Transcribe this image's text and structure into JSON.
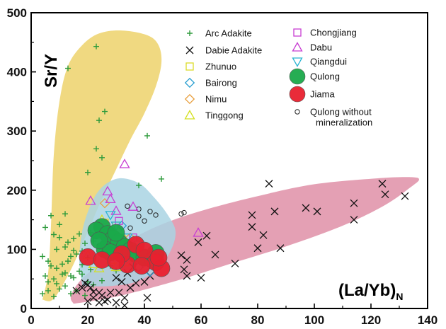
{
  "chart_data": {
    "type": "scatter",
    "title": "",
    "ylabel": "Sr/Y",
    "xlabel_main": "(La/Yb)",
    "xlabel_sub": "N",
    "xlim": [
      0,
      140
    ],
    "ylim": [
      0,
      500
    ],
    "x_ticks": [
      0,
      20,
      40,
      60,
      80,
      100,
      120,
      140
    ],
    "y_ticks": [
      0,
      100,
      200,
      300,
      400,
      500
    ],
    "x_tick_labels": [
      "0",
      "20",
      "40",
      "60",
      "80",
      "100",
      "120",
      "140"
    ],
    "y_tick_labels": [
      "0",
      "100",
      "200",
      "300",
      "400",
      "500"
    ],
    "grid": false,
    "legend_position": "top-right",
    "fields": [
      {
        "name": "arc-adakite-field",
        "color": "#efd77a",
        "outline": [
          [
            4,
            15
          ],
          [
            6,
            60
          ],
          [
            7,
            140
          ],
          [
            8,
            260
          ],
          [
            10,
            350
          ],
          [
            13,
            410
          ],
          [
            18,
            445
          ],
          [
            24,
            465
          ],
          [
            32,
            470
          ],
          [
            41,
            462
          ],
          [
            45,
            445
          ],
          [
            46,
            415
          ],
          [
            44,
            375
          ],
          [
            40,
            330
          ],
          [
            35,
            285
          ],
          [
            30,
            235
          ],
          [
            25,
            185
          ],
          [
            20,
            130
          ],
          [
            15,
            75
          ],
          [
            10,
            30
          ],
          [
            7,
            13
          ],
          [
            4,
            15
          ]
        ]
      },
      {
        "name": "dabie-adakite-field",
        "color": "#e39bb0",
        "outline": [
          [
            15,
            8
          ],
          [
            30,
            20
          ],
          [
            50,
            45
          ],
          [
            70,
            75
          ],
          [
            90,
            105
          ],
          [
            110,
            140
          ],
          [
            125,
            175
          ],
          [
            134,
            205
          ],
          [
            137,
            218
          ],
          [
            134,
            222
          ],
          [
            122,
            220
          ],
          [
            100,
            210
          ],
          [
            80,
            190
          ],
          [
            60,
            165
          ],
          [
            45,
            140
          ],
          [
            33,
            110
          ],
          [
            25,
            80
          ],
          [
            17,
            45
          ],
          [
            14,
            20
          ],
          [
            15,
            8
          ]
        ]
      },
      {
        "name": "tibet-adakite-field",
        "color": "#a9d3e3",
        "outline": [
          [
            18,
            40
          ],
          [
            17,
            80
          ],
          [
            18,
            130
          ],
          [
            21,
            175
          ],
          [
            25,
            205
          ],
          [
            31,
            220
          ],
          [
            38,
            212
          ],
          [
            43,
            190
          ],
          [
            48,
            160
          ],
          [
            51,
            130
          ],
          [
            49,
            95
          ],
          [
            44,
            65
          ],
          [
            37,
            45
          ],
          [
            28,
            38
          ],
          [
            20,
            38
          ],
          [
            18,
            40
          ]
        ]
      }
    ],
    "series": [
      {
        "name": "Arc Adakite",
        "marker": "plus",
        "color": "#2e9b3c",
        "points": [
          [
            23,
            443
          ],
          [
            13,
            406
          ],
          [
            26,
            333
          ],
          [
            24,
            318
          ],
          [
            41,
            292
          ],
          [
            46,
            219
          ],
          [
            38,
            208
          ],
          [
            5,
            137
          ],
          [
            7,
            157
          ],
          [
            10,
            142
          ],
          [
            12,
            160
          ],
          [
            8,
            125
          ],
          [
            10,
            120
          ],
          [
            13,
            112
          ],
          [
            15,
            118
          ],
          [
            17,
            126
          ],
          [
            19,
            110
          ],
          [
            21,
            128
          ],
          [
            22,
            114
          ],
          [
            4,
            88
          ],
          [
            6,
            80
          ],
          [
            7,
            72
          ],
          [
            9,
            68
          ],
          [
            11,
            75
          ],
          [
            13,
            80
          ],
          [
            14,
            88
          ],
          [
            16,
            92
          ],
          [
            18,
            97
          ],
          [
            20,
            86
          ],
          [
            5,
            55
          ],
          [
            6,
            45
          ],
          [
            8,
            50
          ],
          [
            9,
            42
          ],
          [
            11,
            58
          ],
          [
            12,
            60
          ],
          [
            14,
            55
          ],
          [
            15,
            52
          ],
          [
            17,
            63
          ],
          [
            18,
            58
          ],
          [
            20,
            45
          ],
          [
            22,
            40
          ],
          [
            25,
            47
          ],
          [
            4,
            25
          ],
          [
            6,
            30
          ],
          [
            8,
            20
          ],
          [
            10,
            33
          ],
          [
            12,
            38
          ],
          [
            14,
            25
          ],
          [
            16,
            30
          ],
          [
            19,
            22
          ],
          [
            9,
            100
          ],
          [
            12,
            104
          ],
          [
            15,
            98
          ],
          [
            18,
            74
          ],
          [
            21,
            66
          ],
          [
            25,
            100
          ],
          [
            28,
            72
          ],
          [
            30,
            64
          ],
          [
            23,
            270
          ],
          [
            25,
            255
          ],
          [
            20,
            230
          ]
        ]
      },
      {
        "name": "Dabie Adakite",
        "marker": "x",
        "color": "#111111",
        "points": [
          [
            84,
            211
          ],
          [
            124,
            211
          ],
          [
            125,
            193
          ],
          [
            132,
            190
          ],
          [
            114,
            178
          ],
          [
            97,
            170
          ],
          [
            101,
            164
          ],
          [
            86,
            164
          ],
          [
            78,
            158
          ],
          [
            114,
            150
          ],
          [
            78,
            138
          ],
          [
            82,
            124
          ],
          [
            62,
            123
          ],
          [
            59,
            112
          ],
          [
            80,
            102
          ],
          [
            88,
            102
          ],
          [
            65,
            91
          ],
          [
            53,
            90
          ],
          [
            55,
            82
          ],
          [
            72,
            76
          ],
          [
            54,
            66
          ],
          [
            55,
            55
          ],
          [
            60,
            52
          ],
          [
            34,
            60
          ],
          [
            36,
            70
          ],
          [
            30,
            52
          ],
          [
            37,
            43
          ],
          [
            40,
            45
          ],
          [
            42,
            55
          ],
          [
            32,
            45
          ],
          [
            35,
            35
          ],
          [
            28,
            27
          ],
          [
            33,
            18
          ],
          [
            30,
            10
          ],
          [
            41,
            18
          ],
          [
            24,
            10
          ],
          [
            18,
            35
          ],
          [
            19,
            43
          ],
          [
            20,
            40
          ],
          [
            21,
            35
          ],
          [
            22,
            28
          ],
          [
            24,
            27
          ],
          [
            25,
            22
          ],
          [
            27,
            15
          ],
          [
            20,
            12
          ],
          [
            16,
            30
          ],
          [
            22,
            18
          ],
          [
            26,
            12
          ],
          [
            31,
            27
          ],
          [
            33,
            5
          ]
        ]
      },
      {
        "name": "Zhunuo",
        "marker": "square",
        "color": "#dcdc2a",
        "points": [
          [
            26,
            145
          ],
          [
            30,
            140
          ],
          [
            32,
            118
          ],
          [
            35,
            105
          ],
          [
            38,
            95
          ],
          [
            40,
            85
          ],
          [
            42,
            80
          ],
          [
            36,
            90
          ],
          [
            28,
            125
          ]
        ]
      },
      {
        "name": "Bairong",
        "marker": "diamond",
        "color": "#2a9fd0",
        "points": [
          [
            32,
            140
          ],
          [
            34,
            110
          ],
          [
            36,
            88
          ],
          [
            38,
            70
          ],
          [
            40,
            80
          ],
          [
            30,
            100
          ],
          [
            26,
            112
          ],
          [
            42,
            62
          ],
          [
            28,
            90
          ]
        ]
      },
      {
        "name": "Nimu",
        "marker": "diamond",
        "color": "#e8a040",
        "points": [
          [
            26,
            178
          ],
          [
            38,
            102
          ],
          [
            40,
            95
          ],
          [
            35,
            120
          ],
          [
            30,
            110
          ],
          [
            42,
            90
          ]
        ]
      },
      {
        "name": "Tinggong",
        "marker": "triangle-up",
        "color": "#d4e020",
        "points": [
          [
            25,
            150
          ],
          [
            22,
            75
          ],
          [
            24,
            68
          ],
          [
            28,
            82
          ],
          [
            30,
            70
          ],
          [
            33,
            78
          ],
          [
            26,
            95
          ],
          [
            20,
            90
          ]
        ]
      },
      {
        "name": "Chongjiang",
        "marker": "square",
        "color": "#c83ed2",
        "points": [
          [
            31,
            148
          ],
          [
            36,
            120
          ],
          [
            29,
            110
          ],
          [
            33,
            92
          ],
          [
            38,
            88
          ]
        ]
      },
      {
        "name": "Dabu",
        "marker": "triangle-up",
        "color": "#c83ed2",
        "points": [
          [
            33,
            244
          ],
          [
            21,
            182
          ],
          [
            27,
            198
          ],
          [
            36,
            172
          ],
          [
            28,
            185
          ],
          [
            59,
            128
          ],
          [
            30,
            165
          ]
        ]
      },
      {
        "name": "Qiangdui",
        "marker": "triangle-down",
        "color": "#2ab4d2",
        "points": [
          [
            28,
            158
          ],
          [
            30,
            140
          ],
          [
            34,
            120
          ],
          [
            38,
            108
          ],
          [
            44,
            92
          ]
        ]
      },
      {
        "name": "Qulong",
        "marker": "circle-filled",
        "color": "#1aa94a",
        "points": [
          [
            25,
            138
          ],
          [
            23,
            132
          ],
          [
            27,
            126
          ],
          [
            29,
            118
          ],
          [
            31,
            112
          ],
          [
            26,
            100
          ],
          [
            28,
            95
          ],
          [
            33,
            104
          ],
          [
            35,
            98
          ],
          [
            37,
            92
          ],
          [
            40,
            86
          ],
          [
            44,
            94
          ],
          [
            43,
            82
          ],
          [
            24,
            115
          ],
          [
            30,
            128
          ]
        ]
      },
      {
        "name": "Jiama",
        "marker": "circle-filled",
        "color": "#e8202e",
        "points": [
          [
            20,
            87
          ],
          [
            25,
            82
          ],
          [
            34,
            74
          ],
          [
            37,
            108
          ],
          [
            40,
            98
          ],
          [
            44,
            78
          ],
          [
            46,
            68
          ],
          [
            45,
            86
          ],
          [
            32,
            92
          ],
          [
            39,
            72
          ],
          [
            30,
            80
          ]
        ]
      },
      {
        "name": "Qulong without mineralization",
        "marker": "circle-open",
        "color": "#222222",
        "points": [
          [
            34,
            173
          ],
          [
            38,
            168
          ],
          [
            42,
            164
          ],
          [
            40,
            148
          ],
          [
            38,
            156
          ],
          [
            44,
            158
          ],
          [
            53,
            160
          ],
          [
            54,
            162
          ],
          [
            26,
            110
          ],
          [
            24,
            106
          ],
          [
            35,
            136
          ],
          [
            30,
            120
          ]
        ]
      }
    ],
    "legend": [
      {
        "label": "Arc Adakite",
        "series": 0
      },
      {
        "label": "Dabie Adakite",
        "series": 1
      },
      {
        "label": "Zhunuo",
        "series": 2
      },
      {
        "label": "Bairong",
        "series": 3
      },
      {
        "label": "Nimu",
        "series": 4
      },
      {
        "label": "Tinggong",
        "series": 5
      },
      {
        "label": "Chongjiang",
        "series": 6
      },
      {
        "label": "Dabu",
        "series": 7
      },
      {
        "label": "Qiangdui",
        "series": 8
      },
      {
        "label": "Qulong",
        "series": 9
      },
      {
        "label": "Jiama",
        "series": 10
      },
      {
        "label": "Qulong without\nmineralization",
        "series": 11
      }
    ]
  }
}
